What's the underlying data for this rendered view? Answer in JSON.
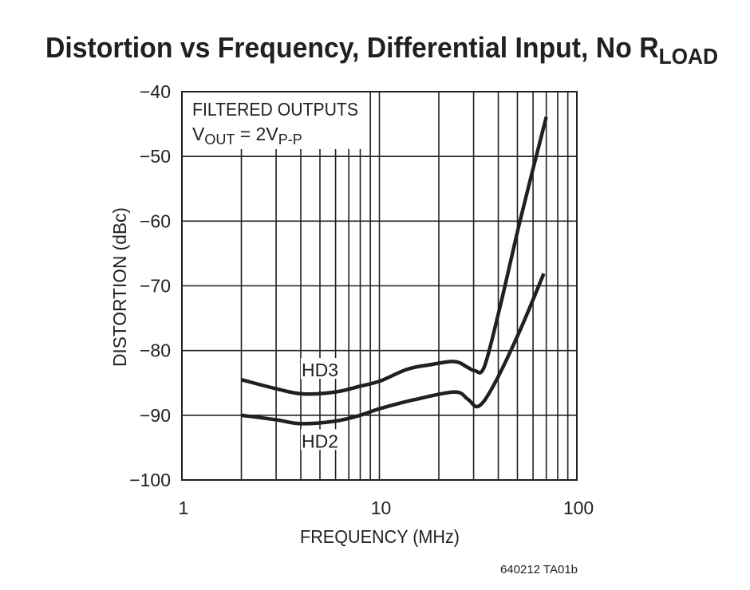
{
  "chart_data": {
    "type": "line",
    "title": {
      "main": "Distortion vs Frequency, Differential Input, No R",
      "subscript": "LOAD"
    },
    "xlabel": "FREQUENCY (MHz)",
    "ylabel": "DISTORTION (dBc)",
    "x_scale": "log",
    "xlim": [
      1,
      100
    ],
    "ylim": [
      -100,
      -40
    ],
    "x_ticks": [
      1,
      10,
      100
    ],
    "x_tick_labels": [
      "1",
      "10",
      "100"
    ],
    "y_ticks": [
      -40,
      -50,
      -60,
      -70,
      -80,
      -90,
      -100
    ],
    "y_tick_labels": [
      "−40",
      "−50",
      "−60",
      "−70",
      "−80",
      "−90",
      "−100"
    ],
    "grid": true,
    "annotation": {
      "line1": "FILTERED OUTPUTS",
      "v": "V",
      "v_sub": "OUT",
      "eq": " = 2V",
      "eq_sub": "P-P"
    },
    "series": [
      {
        "name": "HD3",
        "x": [
          2,
          3,
          4.1,
          6,
          8,
          10.1,
          13.8,
          18,
          24,
          28,
          30.4,
          34,
          41,
          52,
          70
        ],
        "y": [
          -84.5,
          -85.9,
          -86.7,
          -86.4,
          -85.5,
          -84.7,
          -82.9,
          -82.2,
          -81.7,
          -82.6,
          -83.1,
          -82.5,
          -73,
          -59.5,
          -43.9
        ]
      },
      {
        "name": "HD2",
        "x": [
          2,
          3,
          4,
          6,
          8,
          10,
          15,
          24,
          28,
          31.8,
          38,
          51,
          68
        ],
        "y": [
          -90,
          -90.7,
          -91.3,
          -90.9,
          -90,
          -89,
          -87.6,
          -86.4,
          -87.5,
          -88.6,
          -85.3,
          -77.2,
          -68.1
        ]
      }
    ],
    "line_color": "#231f20"
  },
  "footnote": "640212 TA01b"
}
